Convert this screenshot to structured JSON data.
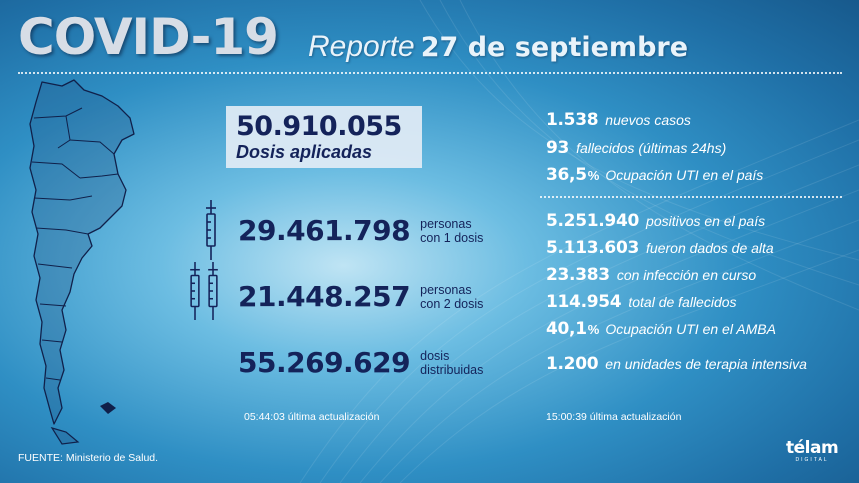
{
  "header": {
    "title": "COVID-19",
    "subtitle_light": "Reporte",
    "subtitle_bold": "27 de septiembre"
  },
  "vaccination": {
    "applied": {
      "value": "50.910.055",
      "label": "Dosis aplicadas"
    },
    "rows": [
      {
        "value": "29.461.798",
        "label": "personas\ncon 1 dosis"
      },
      {
        "value": "21.448.257",
        "label": "personas\ncon 2 dosis"
      },
      {
        "value": "55.269.629",
        "label": "dosis\ndistribuidas"
      }
    ],
    "update_time": "05:44:03",
    "update_label": "última actualización"
  },
  "daily": [
    {
      "value": "1.538",
      "pct": "",
      "text": "nuevos casos"
    },
    {
      "value": "93",
      "pct": "",
      "text": "fallecidos (últimas 24hs)"
    },
    {
      "value": "36,5",
      "pct": "%",
      "text": "Ocupación UTI en el país"
    }
  ],
  "totals": [
    {
      "value": "5.251.940",
      "pct": "",
      "text": "positivos en el país"
    },
    {
      "value": "5.113.603",
      "pct": "",
      "text": "fueron dados de alta"
    },
    {
      "value": "23.383",
      "pct": "",
      "text": "con infección en curso"
    },
    {
      "value": "114.954",
      "pct": "",
      "text": "total de fallecidos"
    },
    {
      "value": "40,1",
      "pct": "%",
      "text": "Ocupación UTI en el AMBA"
    },
    {
      "value": "1.200",
      "pct": "",
      "text": "en unidades de terapia intensiva"
    }
  ],
  "stats_update": {
    "time": "15:00:39",
    "label": "última actualización"
  },
  "footer": {
    "source": "FUENTE: Ministerio de Salud.",
    "logo_name": "télam",
    "logo_sub": "DIGITAL"
  },
  "colors": {
    "dark_text": "#14235a",
    "box_bg": "#e2ecf5"
  },
  "icons": [
    "argentina-map-icon",
    "syringe-icon"
  ]
}
